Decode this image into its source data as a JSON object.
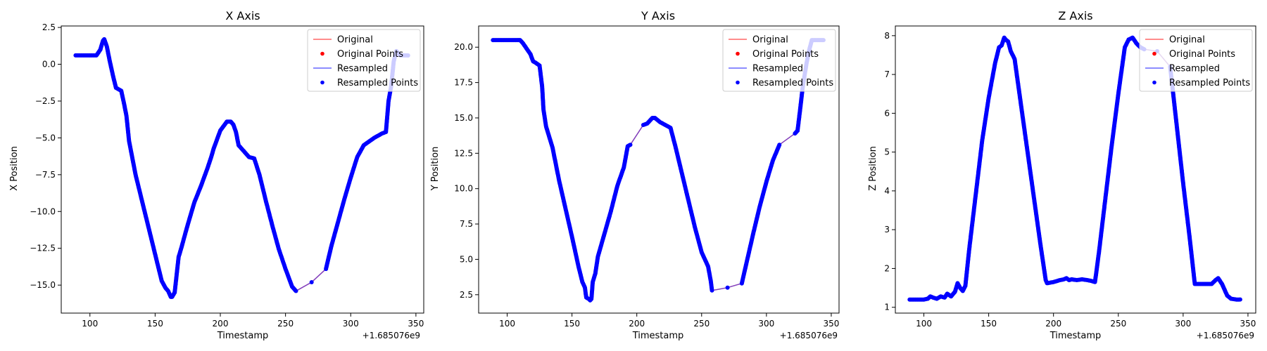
{
  "chart_data": [
    {
      "type": "line",
      "title": "X Axis",
      "xlabel": "Timestamp",
      "ylabel": "X Position",
      "offset_label": "+1.685076e9",
      "xlim": [
        78,
        356
      ],
      "ylim": [
        -16.9,
        2.6
      ],
      "xticks": [
        100,
        150,
        200,
        250,
        300,
        350
      ],
      "xtick_labels": [
        "100",
        "150",
        "200",
        "250",
        "300",
        "350"
      ],
      "yticks": [
        2.5,
        0,
        -2.5,
        -5,
        -7.5,
        -10,
        -12.5,
        -15
      ],
      "ytick_labels": [
        "2.5",
        "0.0",
        "−2.5",
        "−5.0",
        "−7.5",
        "−10.0",
        "−12.5",
        "−15.0"
      ],
      "grid": false,
      "legend": "top-right",
      "legend_entries": [
        "Original",
        "Original Points",
        "Resampled",
        "Resampled Points"
      ],
      "x": [
        89,
        95,
        100,
        105,
        108,
        110,
        111,
        113,
        115,
        118,
        120,
        122,
        124,
        126,
        128,
        130,
        135,
        140,
        145,
        150,
        155,
        158,
        160,
        162,
        163,
        165,
        168,
        170,
        175,
        180,
        185,
        190,
        193,
        195,
        200,
        205,
        208,
        210,
        212,
        214,
        218,
        222,
        226,
        230,
        235,
        240,
        245,
        250,
        255,
        258,
        270,
        281,
        285,
        290,
        295,
        300,
        305,
        310,
        318,
        324,
        327,
        329,
        331,
        333,
        335,
        338,
        341,
        344
      ],
      "y": [
        0.6,
        0.6,
        0.6,
        0.6,
        1.0,
        1.6,
        1.7,
        1.2,
        0.3,
        -0.9,
        -1.6,
        -1.7,
        -1.8,
        -2.6,
        -3.5,
        -5.2,
        -7.5,
        -9.3,
        -11.1,
        -12.9,
        -14.7,
        -15.2,
        -15.4,
        -15.8,
        -15.8,
        -15.5,
        -13.1,
        -12.5,
        -10.9,
        -9.4,
        -8.3,
        -7.1,
        -6.3,
        -5.7,
        -4.5,
        -3.9,
        -3.9,
        -4.1,
        -4.6,
        -5.5,
        -5.9,
        -6.3,
        -6.4,
        -7.5,
        -9.3,
        -11.0,
        -12.6,
        -13.9,
        -15.1,
        -15.4,
        -14.8,
        -13.9,
        -12.4,
        -10.8,
        -9.2,
        -7.7,
        -6.3,
        -5.5,
        -5.0,
        -4.7,
        -4.6,
        -2.5,
        -1.5,
        0.2,
        0.9,
        0.6,
        0.6,
        0.6
      ]
    },
    {
      "type": "line",
      "title": "Y Axis",
      "xlabel": "Timestamp",
      "ylabel": "Y Position",
      "offset_label": "+1.685076e9",
      "xlim": [
        78,
        356
      ],
      "ylim": [
        1.2,
        21.5
      ],
      "xticks": [
        100,
        150,
        200,
        250,
        300,
        350
      ],
      "xtick_labels": [
        "100",
        "150",
        "200",
        "250",
        "300",
        "350"
      ],
      "yticks": [
        20,
        17.5,
        15,
        12.5,
        10,
        7.5,
        5,
        2.5
      ],
      "ytick_labels": [
        "20.0",
        "17.5",
        "15.0",
        "12.5",
        "10.0",
        "7.5",
        "5.0",
        "2.5"
      ],
      "grid": false,
      "legend": "top-right",
      "legend_entries": [
        "Original",
        "Original Points",
        "Resampled",
        "Resampled Points"
      ],
      "x": [
        89,
        95,
        100,
        105,
        108,
        110,
        112,
        115,
        118,
        120,
        122,
        125,
        127,
        128,
        130,
        135,
        140,
        145,
        150,
        155,
        158,
        160,
        161,
        163,
        164,
        165,
        166,
        168,
        170,
        175,
        180,
        185,
        190,
        193,
        195,
        205,
        208,
        210,
        212,
        214,
        218,
        222,
        226,
        230,
        235,
        240,
        245,
        250,
        255,
        257,
        258,
        270,
        281,
        285,
        290,
        295,
        300,
        305,
        310,
        322,
        324,
        326,
        328,
        331,
        333,
        335,
        338,
        341,
        344
      ],
      "y": [
        20.5,
        20.5,
        20.5,
        20.5,
        20.5,
        20.5,
        20.3,
        19.9,
        19.5,
        19.0,
        18.9,
        18.7,
        17.2,
        15.6,
        14.4,
        12.9,
        10.6,
        8.6,
        6.6,
        4.5,
        3.4,
        3.0,
        2.3,
        2.2,
        2.1,
        2.2,
        3.4,
        4.0,
        5.2,
        6.8,
        8.4,
        10.2,
        11.5,
        13.0,
        13.1,
        14.5,
        14.6,
        14.8,
        15.0,
        15.0,
        14.7,
        14.5,
        14.3,
        12.9,
        11.0,
        9.1,
        7.2,
        5.5,
        4.5,
        3.5,
        2.8,
        3.0,
        3.3,
        4.9,
        6.9,
        8.8,
        10.5,
        12.0,
        13.1,
        13.9,
        14.1,
        15.6,
        17.2,
        18.9,
        19.8,
        20.5,
        20.5,
        20.5,
        20.5
      ]
    },
    {
      "type": "line",
      "title": "Z Axis",
      "xlabel": "Timestamp",
      "ylabel": "Z Position",
      "offset_label": "+1.685076e9",
      "xlim": [
        78,
        356
      ],
      "ylim": [
        0.85,
        8.25
      ],
      "xticks": [
        100,
        150,
        200,
        250,
        300,
        350
      ],
      "xtick_labels": [
        "100",
        "150",
        "200",
        "250",
        "300",
        "350"
      ],
      "yticks": [
        8,
        7,
        6,
        5,
        4,
        3,
        2,
        1
      ],
      "ytick_labels": [
        "8",
        "7",
        "6",
        "5",
        "4",
        "3",
        "2",
        "1"
      ],
      "grid": false,
      "legend": "top-right",
      "legend_entries": [
        "Original",
        "Original Points",
        "Resampled",
        "Resampled Points"
      ],
      "x": [
        89,
        95,
        100,
        103,
        105,
        107,
        110,
        113,
        116,
        118,
        121,
        124,
        126,
        128,
        130,
        132,
        135,
        140,
        145,
        150,
        155,
        158,
        160,
        162,
        163,
        165,
        167,
        170,
        175,
        180,
        185,
        190,
        194,
        195,
        200,
        205,
        208,
        210,
        212,
        214,
        218,
        222,
        226,
        229,
        232,
        235,
        240,
        245,
        250,
        255,
        258,
        261,
        264,
        267,
        270,
        280,
        290,
        295,
        300,
        305,
        309,
        315,
        322,
        325,
        327,
        330,
        334,
        337,
        341,
        344
      ],
      "y": [
        1.2,
        1.2,
        1.2,
        1.22,
        1.28,
        1.25,
        1.22,
        1.28,
        1.25,
        1.35,
        1.28,
        1.4,
        1.62,
        1.5,
        1.42,
        1.55,
        2.5,
        3.9,
        5.3,
        6.4,
        7.3,
        7.7,
        7.75,
        7.95,
        7.9,
        7.85,
        7.6,
        7.4,
        6.2,
        5.0,
        3.8,
        2.6,
        1.7,
        1.62,
        1.65,
        1.7,
        1.72,
        1.75,
        1.7,
        1.72,
        1.7,
        1.72,
        1.7,
        1.68,
        1.65,
        2.4,
        3.8,
        5.2,
        6.5,
        7.7,
        7.9,
        7.95,
        7.8,
        7.7,
        7.65,
        7.6,
        7.2,
        5.7,
        4.2,
        2.8,
        1.6,
        1.6,
        1.6,
        1.7,
        1.75,
        1.6,
        1.3,
        1.22,
        1.2,
        1.2
      ]
    }
  ],
  "colors": {
    "original": "#ff0000",
    "resampled": "#0000ff",
    "original_line_alpha": 0.5,
    "resampled_line_alpha": 0.5,
    "axes": "#000000"
  }
}
